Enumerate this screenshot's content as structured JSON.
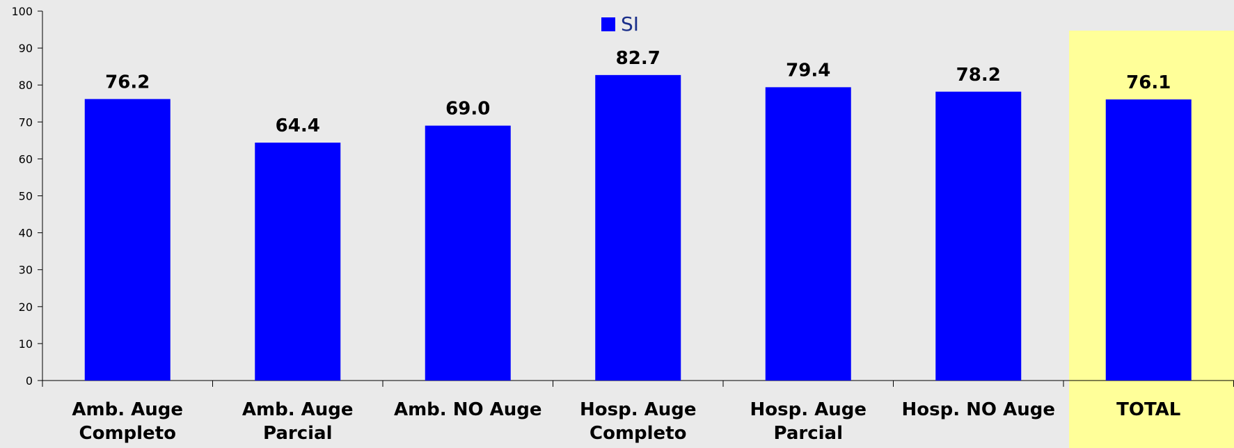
{
  "chart_data": {
    "type": "bar",
    "categories": [
      [
        "Amb. Auge",
        "Completo"
      ],
      [
        "Amb. Auge",
        "Parcial"
      ],
      [
        "Amb. NO Auge"
      ],
      [
        "Hosp. Auge",
        "Completo"
      ],
      [
        "Hosp. Auge",
        "Parcial"
      ],
      [
        "Hosp. NO Auge"
      ],
      [
        "TOTAL"
      ]
    ],
    "series": [
      {
        "name": "SI",
        "color": "#0000ff",
        "values": [
          76.2,
          64.4,
          69.0,
          82.7,
          79.4,
          78.2,
          76.1
        ],
        "labels": [
          "76.2",
          "64.4",
          "69.0",
          "82.7",
          "79.4",
          "78.2",
          "76.1"
        ]
      }
    ],
    "highlight_category_index": 6,
    "highlight_color": "#ffff99",
    "ylim": [
      0,
      100
    ],
    "yticks": [
      0,
      10,
      20,
      30,
      40,
      50,
      60,
      70,
      80,
      90,
      100
    ],
    "grid": false,
    "legend_position": "top-center"
  }
}
